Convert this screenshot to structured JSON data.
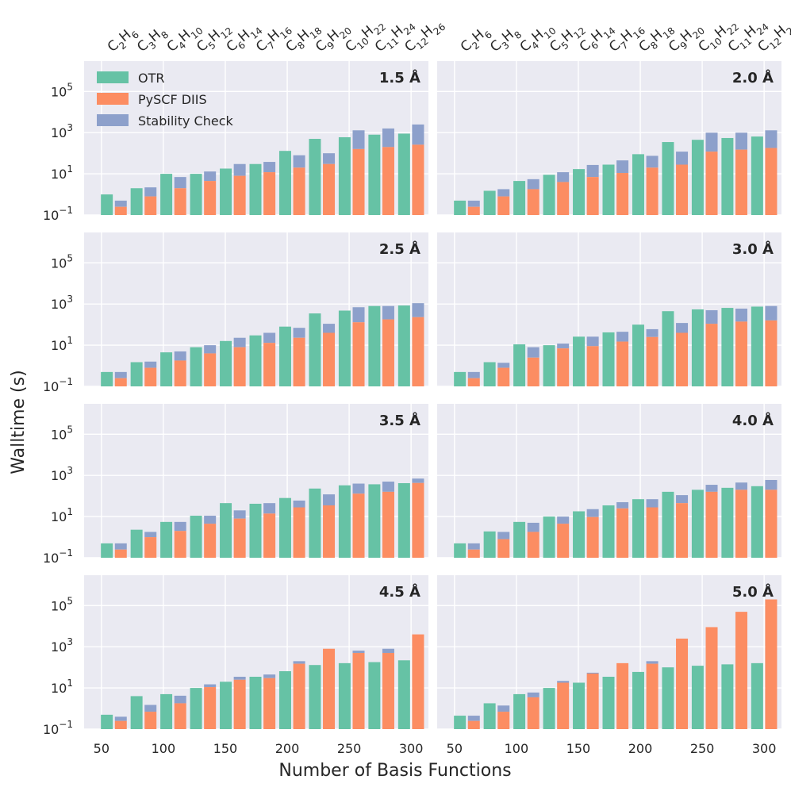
{
  "figure": {
    "ylabel": "Walltime (s)",
    "xlabel": "Number of Basis Functions",
    "x_ticks": [
      "50",
      "100",
      "150",
      "200",
      "250",
      "300"
    ],
    "y_ticks": [
      {
        "base": "10",
        "exp": "5"
      },
      {
        "base": "10",
        "exp": "3"
      },
      {
        "base": "10",
        "exp": "1"
      },
      {
        "base": "10",
        "exp": "−1"
      }
    ],
    "molecules": [
      {
        "c": "2",
        "h": "6"
      },
      {
        "c": "3",
        "h": "8"
      },
      {
        "c": "4",
        "h": "10"
      },
      {
        "c": "5",
        "h": "12"
      },
      {
        "c": "6",
        "h": "14"
      },
      {
        "c": "7",
        "h": "16"
      },
      {
        "c": "8",
        "h": "18"
      },
      {
        "c": "9",
        "h": "20"
      },
      {
        "c": "10",
        "h": "22"
      },
      {
        "c": "11",
        "h": "24"
      },
      {
        "c": "12",
        "h": "26"
      }
    ],
    "legend": {
      "otr": "OTR",
      "diis": "PySCF DIIS",
      "stability": "Stability Check"
    },
    "colors": {
      "otr": "#66c2a5",
      "diis": "#fc8d62",
      "stability": "#8da0cb",
      "panel_bg": "#eaeaf2",
      "grid": "#ffffff"
    }
  },
  "chart_data": {
    "type": "bar",
    "x_label": "Number of Basis Functions",
    "y_label": "Walltime (s)",
    "y_scale": "log",
    "ylim": [
      0.1,
      3000000
    ],
    "xlim": [
      36,
      314
    ],
    "x_ticks": [
      50,
      100,
      150,
      200,
      250,
      300
    ],
    "basis_functions": [
      60,
      84,
      108,
      132,
      156,
      180,
      204,
      228,
      252,
      276,
      300
    ],
    "series_names": [
      "OTR",
      "PySCF DIIS",
      "Stability Check"
    ],
    "panels": [
      {
        "title": "1.5 Å",
        "otr": [
          1.0,
          2.0,
          10,
          10,
          18,
          30,
          130,
          500,
          600,
          800,
          900
        ],
        "diis": [
          0.25,
          0.8,
          2.0,
          4.5,
          8,
          12,
          20,
          30,
          160,
          200,
          260
        ],
        "stab": [
          0.5,
          2.2,
          7,
          13,
          30,
          38,
          80,
          100,
          1300,
          1600,
          2500
        ]
      },
      {
        "title": "2.0 Å",
        "otr": [
          0.5,
          1.5,
          4.5,
          9,
          17,
          28,
          90,
          350,
          450,
          550,
          650
        ],
        "diis": [
          0.25,
          0.8,
          1.8,
          4,
          7,
          11,
          20,
          28,
          120,
          150,
          180
        ],
        "stab": [
          0.5,
          1.8,
          5.5,
          12,
          27,
          45,
          75,
          120,
          1000,
          1000,
          1300
        ]
      },
      {
        "title": "2.5 Å",
        "otr": [
          0.5,
          1.5,
          4.5,
          8,
          16,
          30,
          80,
          350,
          480,
          800,
          850
        ],
        "diis": [
          0.25,
          0.8,
          1.8,
          4,
          8,
          13,
          23,
          40,
          130,
          180,
          230
        ],
        "stab": [
          0.5,
          1.6,
          5,
          10,
          23,
          40,
          70,
          110,
          700,
          800,
          1100
        ]
      },
      {
        "title": "3.0 Å",
        "otr": [
          0.5,
          1.5,
          11,
          10,
          26,
          42,
          100,
          450,
          550,
          650,
          750
        ],
        "diis": [
          0.25,
          0.8,
          2.5,
          7,
          9,
          15,
          25,
          40,
          110,
          140,
          160
        ],
        "stab": [
          0.5,
          1.4,
          8,
          12,
          26,
          45,
          60,
          120,
          500,
          600,
          800
        ]
      },
      {
        "title": "3.5 Å",
        "otr": [
          0.5,
          2.3,
          5.5,
          11,
          45,
          42,
          80,
          230,
          330,
          370,
          420
        ],
        "diis": [
          0.25,
          1.0,
          2.0,
          4.5,
          8,
          14,
          28,
          35,
          130,
          160,
          430
        ],
        "stab": [
          0.5,
          1.8,
          5.5,
          11,
          20,
          45,
          60,
          120,
          400,
          500,
          700
        ]
      },
      {
        "title": "4.0 Å",
        "otr": [
          0.5,
          1.9,
          5.5,
          10,
          18,
          35,
          70,
          160,
          200,
          250,
          300
        ],
        "diis": [
          0.25,
          0.8,
          1.8,
          4.5,
          9.5,
          25,
          28,
          45,
          160,
          200,
          200
        ],
        "stab": [
          0.5,
          1.8,
          5,
          10,
          23,
          50,
          70,
          110,
          350,
          450,
          600
        ]
      },
      {
        "title": "4.5 Å",
        "otr": [
          0.5,
          4,
          5,
          10,
          20,
          35,
          65,
          130,
          160,
          180,
          220
        ],
        "diis": [
          0.25,
          0.7,
          1.8,
          11,
          25,
          30,
          150,
          800,
          500,
          500,
          4000
        ],
        "stab": [
          0.4,
          1.5,
          4.2,
          15,
          35,
          45,
          200,
          800,
          650,
          800,
          4000
        ]
      },
      {
        "title": "5.0 Å",
        "otr": [
          0.45,
          1.8,
          5,
          10,
          18,
          35,
          60,
          100,
          120,
          140,
          160
        ],
        "diis": [
          0.25,
          0.7,
          3.5,
          18,
          50,
          160,
          150,
          2500,
          9000,
          50000,
          200000
        ],
        "stab": [
          0.45,
          1.4,
          6,
          22,
          55,
          160,
          200,
          2500,
          9000,
          50000,
          200000
        ]
      }
    ]
  }
}
